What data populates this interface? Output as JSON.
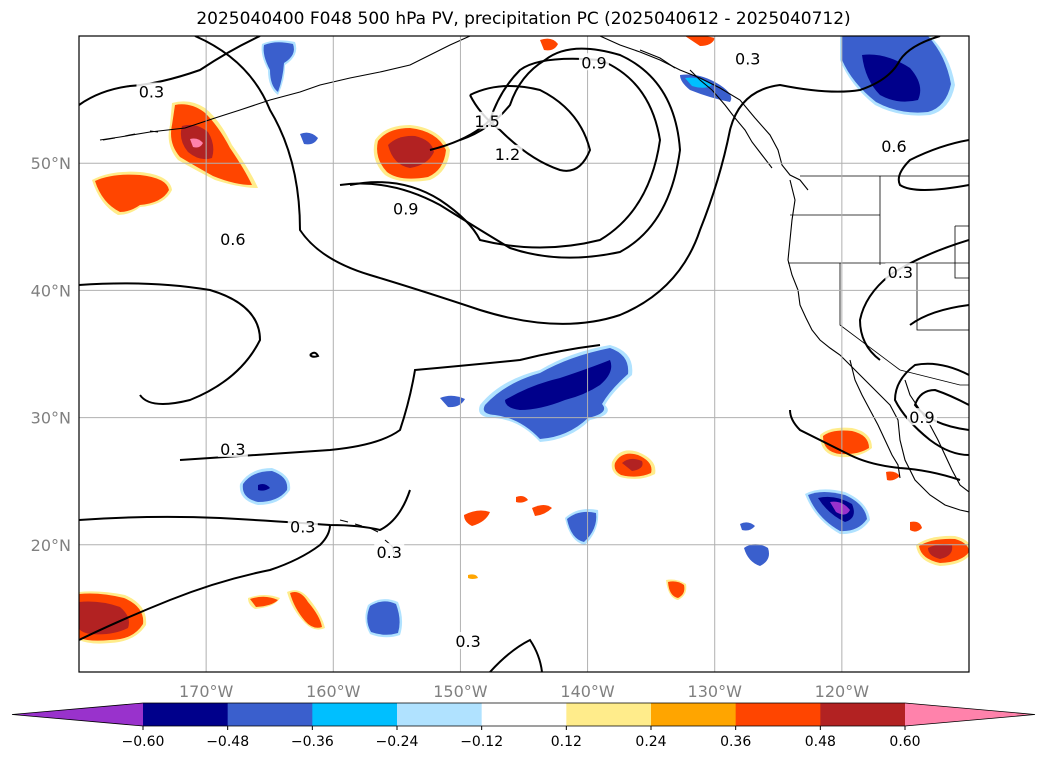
{
  "title": "2025040400 F048 500 hPa PV, precipitation PC (2025040612 - 2025040712)",
  "chart_data": {
    "type": "heatmap",
    "map": {
      "lon_range": [
        -180,
        -110
      ],
      "lat_range": [
        10,
        60
      ],
      "lat_ticks": [
        {
          "value": 50,
          "label": "50°N"
        },
        {
          "value": 40,
          "label": "40°N"
        },
        {
          "value": 30,
          "label": "30°N"
        },
        {
          "value": 20,
          "label": "20°N"
        }
      ],
      "lon_ticks": [
        {
          "value": -170,
          "label": "170°W"
        },
        {
          "value": -160,
          "label": "160°W"
        },
        {
          "value": -150,
          "label": "150°W"
        },
        {
          "value": -140,
          "label": "140°W"
        },
        {
          "value": -130,
          "label": "130°W"
        },
        {
          "value": -120,
          "label": "120°W"
        }
      ],
      "grid": true
    },
    "colorbar": {
      "levels": [
        -0.6,
        -0.48,
        -0.36,
        -0.24,
        -0.12,
        0.12,
        0.24,
        0.36,
        0.48,
        0.6
      ],
      "tick_labels": [
        "−0.60",
        "−0.48",
        "−0.36",
        "−0.24",
        "−0.12",
        "0.12",
        "0.24",
        "0.36",
        "0.48",
        "0.60"
      ],
      "colors": [
        "#9932cc",
        "#00008b",
        "#3a5fcd",
        "#00bfff",
        "#b0e2ff",
        "#ffffff",
        "#ffec8b",
        "#ffa500",
        "#ff4500",
        "#b22222",
        "#ff82ab"
      ],
      "extend": "both"
    },
    "pv_contour_labels": [
      {
        "value": "0.3",
        "lon": -174.3,
        "lat": 55.4
      },
      {
        "value": "0.6",
        "lon": -167.9,
        "lat": 43.8
      },
      {
        "value": "0.9",
        "lon": -154.3,
        "lat": 46.2
      },
      {
        "value": "1.2",
        "lon": -146.3,
        "lat": 50.5
      },
      {
        "value": "1.5",
        "lon": -147.9,
        "lat": 53.1
      },
      {
        "value": "0.9",
        "lon": -139.5,
        "lat": 57.7
      },
      {
        "value": "0.3",
        "lon": -127.4,
        "lat": 58.0
      },
      {
        "value": "0.6",
        "lon": -115.9,
        "lat": 51.1
      },
      {
        "value": "0.3",
        "lon": -115.4,
        "lat": 41.2
      },
      {
        "value": "0.3",
        "lon": -167.9,
        "lat": 27.3
      },
      {
        "value": "0.3",
        "lon": -162.4,
        "lat": 21.2
      },
      {
        "value": "0.3",
        "lon": -155.6,
        "lat": 19.2
      },
      {
        "value": "0.3",
        "lon": -149.4,
        "lat": 12.2
      },
      {
        "value": "0.9",
        "lon": -113.7,
        "lat": 29.8
      }
    ]
  }
}
